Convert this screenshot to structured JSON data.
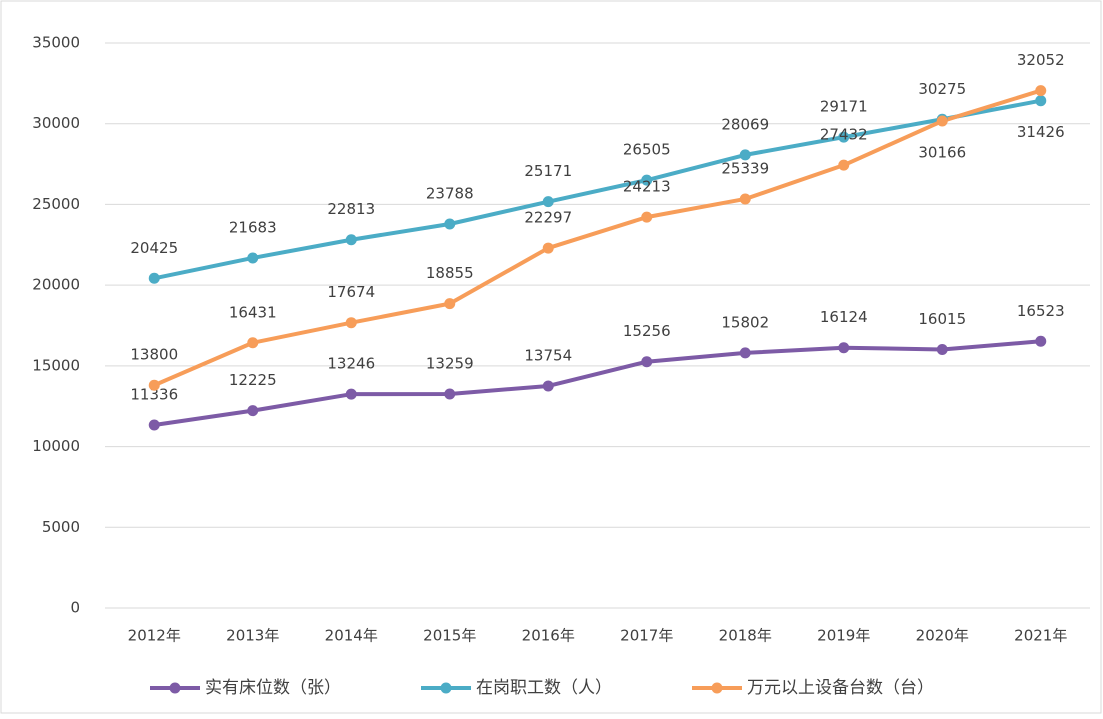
{
  "chart_data": {
    "type": "line",
    "categories": [
      "2012年",
      "2013年",
      "2014年",
      "2015年",
      "2016年",
      "2017年",
      "2018年",
      "2019年",
      "2020年",
      "2021年"
    ],
    "series": [
      {
        "name": "实有床位数（张）",
        "color": "#7d5ba6",
        "values": [
          11336,
          12225,
          13246,
          13259,
          13754,
          15256,
          15802,
          16124,
          16015,
          16523
        ]
      },
      {
        "name": "在岗职工数（人）",
        "color": "#4bacc6",
        "values": [
          20425,
          21683,
          22813,
          23788,
          25171,
          26505,
          28069,
          29171,
          30275,
          31426
        ]
      },
      {
        "name": "万元以上设备台数（台）",
        "color": "#f79d59",
        "values": [
          13800,
          16431,
          17674,
          18855,
          22297,
          24213,
          25339,
          27432,
          30166,
          32052
        ]
      }
    ],
    "ylim": [
      0,
      35000
    ],
    "yticks": [
      0,
      5000,
      10000,
      15000,
      20000,
      25000,
      30000,
      35000
    ],
    "grid": true,
    "legend": "bottom"
  }
}
